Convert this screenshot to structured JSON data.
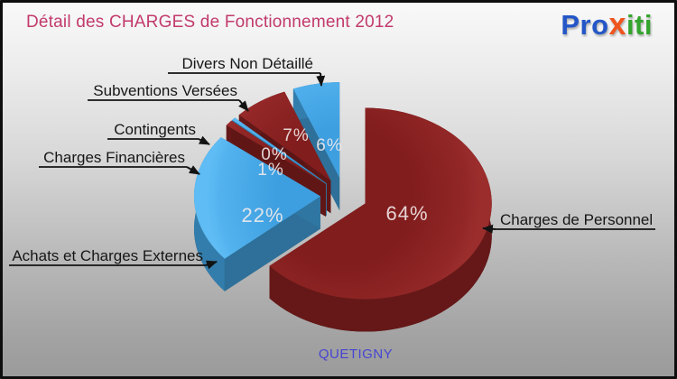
{
  "header": {
    "title": "Détail des CHARGES de Fonctionnement 2012"
  },
  "brand": {
    "part1": "Pro",
    "part2": "x",
    "part3": "iti"
  },
  "footer": {
    "city": "QUETIGNY"
  },
  "colors": {
    "red_slice": "#8a2020",
    "blue_slice": "#45a9e8",
    "title": "#c23a6b",
    "city": "#4645d2"
  },
  "chart_data": {
    "type": "pie",
    "style": "3d-exploded",
    "title": "Détail des CHARGES de Fonctionnement 2012",
    "unit": "%",
    "legend_position": "callout-labels-around-pie",
    "start_angle": "top",
    "direction": "clockwise",
    "slices": [
      {
        "label": "Charges de Personnel",
        "pct": 64,
        "pct_label": "64%",
        "color": "#8a2020"
      },
      {
        "label": "Achats et Charges Externes",
        "pct": 22,
        "pct_label": "22%",
        "color": "#45a9e8"
      },
      {
        "label": "Charges Financières",
        "pct": 1,
        "pct_label": "1%",
        "color": "#8a2020"
      },
      {
        "label": "Contingents",
        "pct": 0,
        "pct_label": "0%",
        "color": "#45a9e8"
      },
      {
        "label": "Subventions Versées",
        "pct": 7,
        "pct_label": "7%",
        "color": "#8a2020"
      },
      {
        "label": "Divers Non Détaillé",
        "pct": 6,
        "pct_label": "6%",
        "color": "#45a9e8"
      }
    ]
  }
}
